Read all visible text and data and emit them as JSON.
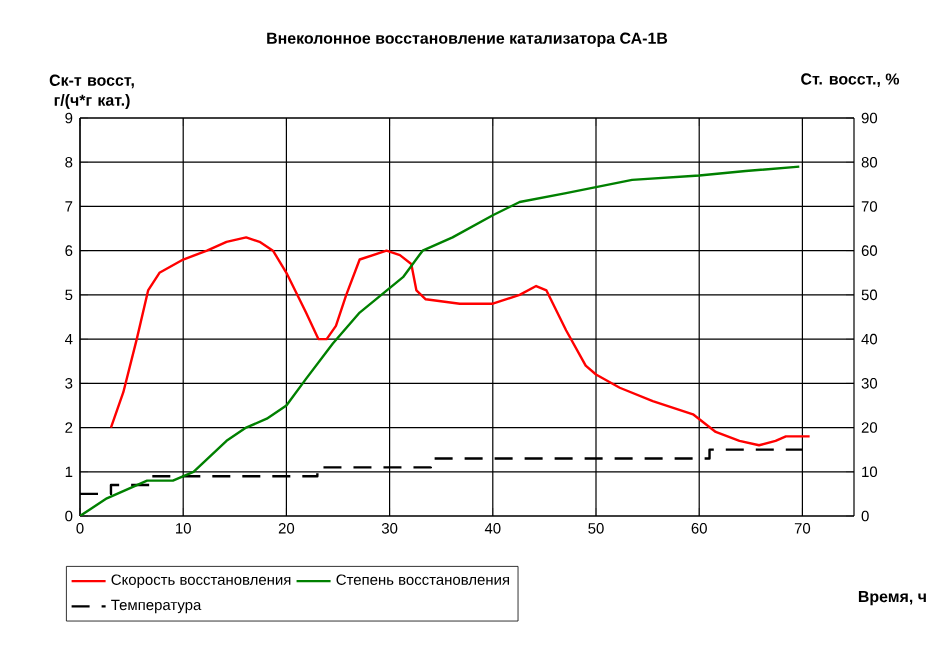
{
  "chart_data": {
    "type": "line",
    "title": "Внеколонное восстановление катализатора СА-1В",
    "xlabel": "Время, ч",
    "ylabel": "Ск-т восст, г/(ч*г кат.)",
    "y2label": "Ст. восст., %",
    "xlim": [
      0,
      75
    ],
    "xticks": [
      0,
      10,
      20,
      30,
      40,
      50,
      60,
      70
    ],
    "ylim": [
      0,
      9
    ],
    "yticks": [
      0,
      1,
      2,
      3,
      4,
      5,
      6,
      7,
      8,
      9
    ],
    "y2lim": [
      0,
      90
    ],
    "y2ticks": [
      0,
      10,
      20,
      30,
      40,
      50,
      60,
      70,
      80,
      90
    ],
    "grid": true,
    "legend": "bottom",
    "marker": "none",
    "series": [
      {
        "name": "Скорость восстановления",
        "color": "#ff0000",
        "x": [
          3,
          4.2,
          5.5,
          6.6,
          7.7,
          10,
          12.3,
          14.2,
          16.1,
          17.4,
          18.7,
          20,
          21.9,
          23.1,
          23.9,
          24.8,
          25.8,
          27.1,
          29.7,
          31,
          32.1,
          32.6,
          33.5,
          36.8,
          40,
          42.6,
          44.2,
          45.2,
          47.1,
          49,
          50,
          52.3,
          55.5,
          59.4,
          61.6,
          63.9,
          65.8,
          67.4,
          68.4,
          70.7
        ],
        "values": [
          2.0,
          2.8,
          4.0,
          5.1,
          5.5,
          5.8,
          6.0,
          6.2,
          6.3,
          6.2,
          6.0,
          5.5,
          4.6,
          4.0,
          4.0,
          4.3,
          5.0,
          5.8,
          6.0,
          5.9,
          5.7,
          5.1,
          4.9,
          4.8,
          4.8,
          5.0,
          5.2,
          5.1,
          4.2,
          3.4,
          3.2,
          2.9,
          2.6,
          2.3,
          1.9,
          1.7,
          1.6,
          1.7,
          1.8,
          1.8
        ]
      },
      {
        "name": "Степень восстановления",
        "axis": "y2",
        "color": "#008000",
        "x": [
          0,
          2.6,
          6.5,
          9,
          11,
          14.2,
          16.1,
          18.1,
          20,
          21.9,
          24.5,
          27.1,
          31.3,
          33.2,
          36.1,
          40,
          42.6,
          47.1,
          53.5,
          60,
          64.5,
          69.7
        ],
        "values": [
          0,
          4,
          8,
          8,
          10,
          17,
          20,
          22,
          25,
          31,
          39,
          46,
          54,
          60,
          63,
          68,
          71,
          73,
          76,
          77,
          78,
          79
        ]
      },
      {
        "name": "Температура",
        "type": "step",
        "line_style": "dashed",
        "color": "#000000",
        "x": [
          0,
          3,
          7,
          23,
          34,
          61,
          70
        ],
        "values": [
          0.5,
          0.7,
          0.9,
          1.1,
          1.3,
          1.5,
          1.5
        ]
      }
    ]
  }
}
